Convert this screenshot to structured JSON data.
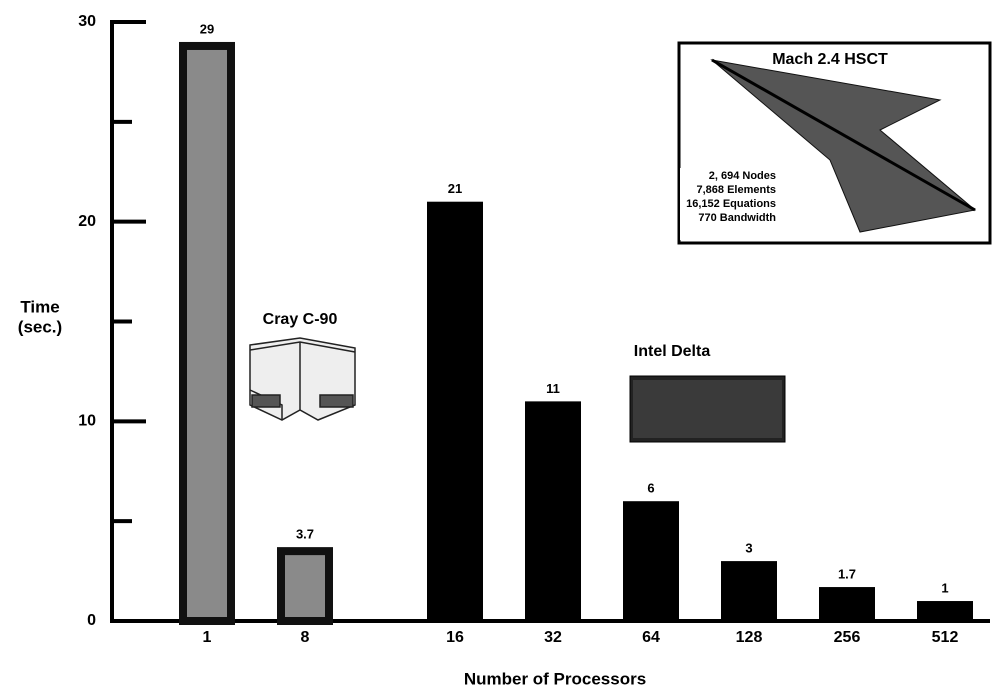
{
  "chart_data": {
    "type": "bar",
    "categories": [
      "1",
      "8",
      "16",
      "32",
      "64",
      "128",
      "256",
      "512"
    ],
    "series": [
      {
        "name": "Cray C-90",
        "color": "#8a8a8a",
        "values": [
          29,
          3.7,
          null,
          null,
          null,
          null,
          null,
          null
        ]
      },
      {
        "name": "Intel Delta",
        "color": "#000000",
        "values": [
          null,
          null,
          21,
          11,
          6,
          3,
          1.7,
          1
        ]
      }
    ],
    "ylim": [
      0,
      30
    ],
    "yticks": [
      0,
      10,
      20,
      30
    ],
    "minor_yticks": [
      5,
      15,
      25
    ],
    "y_label": [
      "Time",
      "(sec.)"
    ],
    "x_label": "Number of Processors",
    "inset": {
      "title": "Mach 2.4 HSCT",
      "lines": [
        "2, 694 Nodes",
        "7,868 Elements",
        "16,152 Equations",
        "770 Bandwidth"
      ]
    }
  }
}
